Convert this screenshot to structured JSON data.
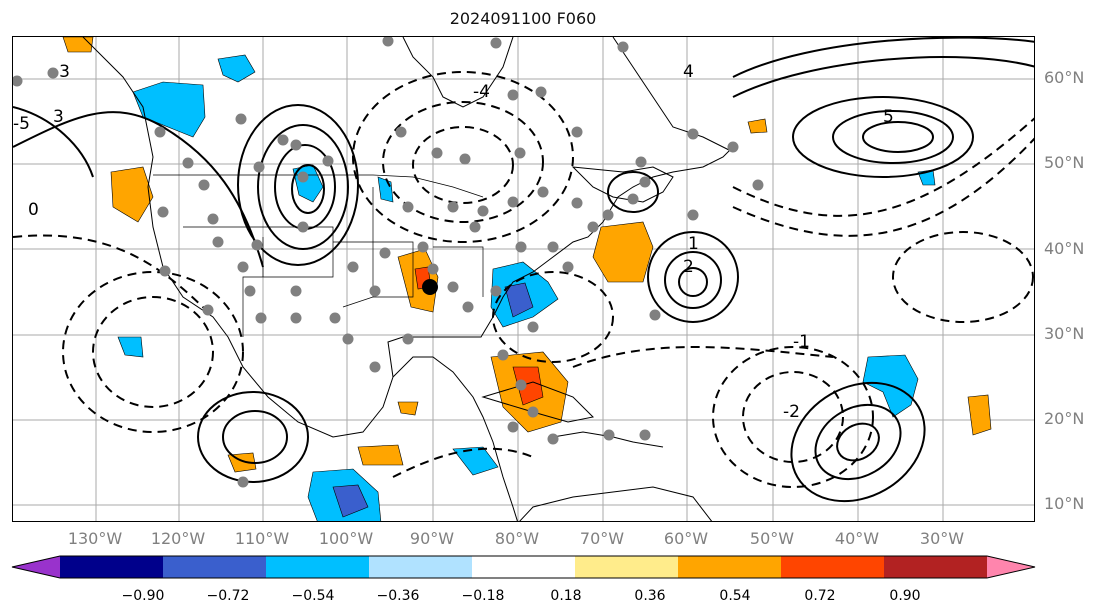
{
  "title": "2024091100 F060",
  "map": {
    "lat_labels": [
      "60°N",
      "50°N",
      "40°N",
      "30°N",
      "20°N",
      "10°N"
    ],
    "lon_labels": [
      "130°W",
      "120°W",
      "110°W",
      "100°W",
      "90°W",
      "80°W",
      "70°W",
      "60°W",
      "50°W",
      "40°W",
      "30°W"
    ],
    "contour_labels": [
      "0",
      "1",
      "2",
      "3",
      "4",
      "5",
      "-1",
      "-2",
      "-3",
      "-4",
      "-5"
    ],
    "colors": {
      "land_outline": "#000000",
      "grid": "#aaaaaa",
      "station_dot": "#808080",
      "positive_shade": "#ffa500",
      "negative_shade": "#00bfff"
    }
  },
  "colorbar": {
    "ticks": [
      "−0.90",
      "−0.72",
      "−0.54",
      "−0.36",
      "−0.18",
      "0.18",
      "0.36",
      "0.54",
      "0.72",
      "0.90"
    ],
    "colors": [
      "#9932cc",
      "#00008b",
      "#3a5fcd",
      "#00bfff",
      "#b0e2ff",
      "#ffffff",
      "#ffec8b",
      "#ffa500",
      "#ff4500",
      "#b22222",
      "#ff85ad"
    ]
  }
}
